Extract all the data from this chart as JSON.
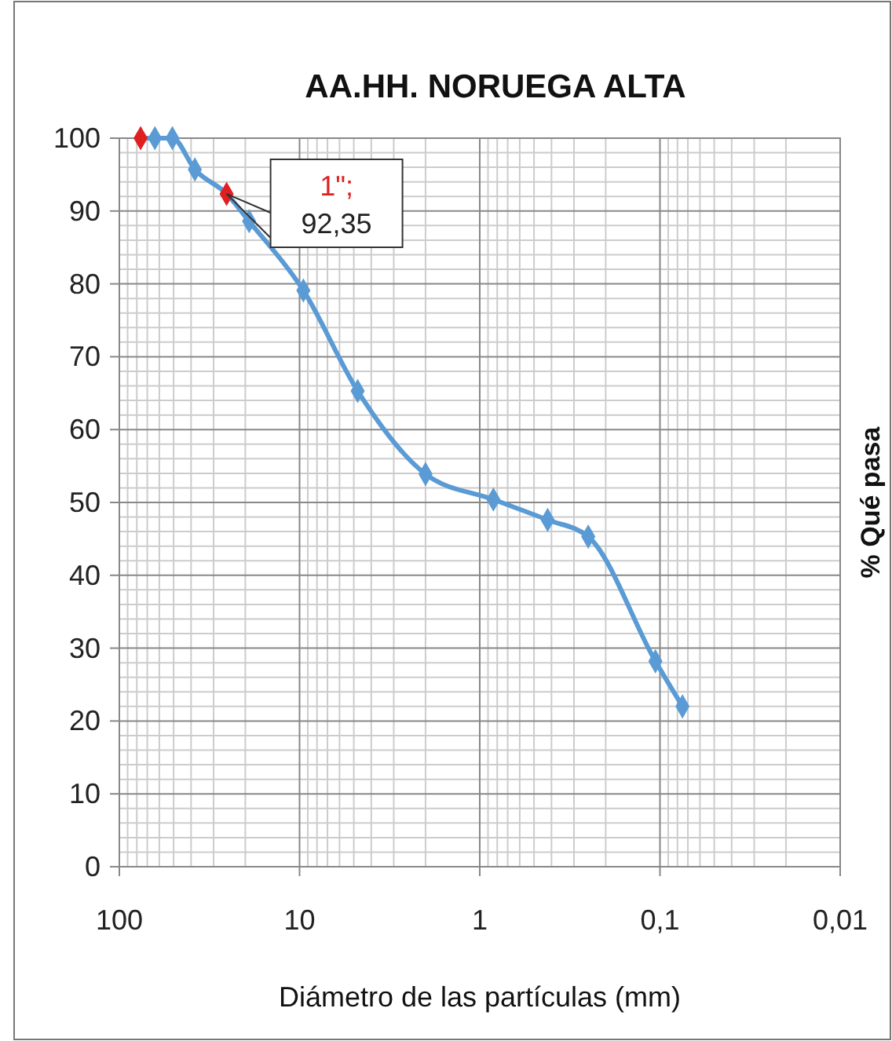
{
  "chart_data": {
    "type": "line",
    "title": "AA.HH. NORUEGA ALTA",
    "xlabel": "Diámetro de las partículas (mm)",
    "ylabel": "% Qué pasa",
    "x": [
      76.2,
      63.5,
      50.8,
      38.1,
      25.4,
      19.05,
      9.525,
      4.76,
      2.0,
      0.84,
      0.42,
      0.25,
      0.106,
      0.075
    ],
    "series": [
      {
        "color": "#5b9bd5",
        "values": [
          100,
          100,
          100,
          95.7,
          92.35,
          88.6,
          79.1,
          65.3,
          53.9,
          50.4,
          47.6,
          45.3,
          28.2,
          22.0
        ],
        "colors": [
          "#e02020",
          "#5b9bd5",
          "#5b9bd5",
          "#5b9bd5",
          "#e02020",
          "#5b9bd5",
          "#5b9bd5",
          "#5b9bd5",
          "#5b9bd5",
          "#5b9bd5",
          "#5b9bd5",
          "#5b9bd5",
          "#5b9bd5",
          "#5b9bd5"
        ]
      }
    ],
    "annotations": [
      {
        "text": "1\";\n92,35",
        "x": 25.4,
        "y": 92.35
      }
    ],
    "log": "x",
    "xlim": [
      100,
      0.01
    ],
    "xticks": [
      100,
      10,
      1,
      {
        "value": 0.1,
        "label": "0,1"
      },
      {
        "value": 0.01,
        "label": "0,01"
      }
    ],
    "ylim": [
      0,
      100
    ],
    "yticks": [
      0,
      10,
      20,
      30,
      40,
      50,
      60,
      70,
      80,
      90,
      100
    ],
    "grid": true,
    "marker": "diamond",
    "line_style": "solid"
  }
}
